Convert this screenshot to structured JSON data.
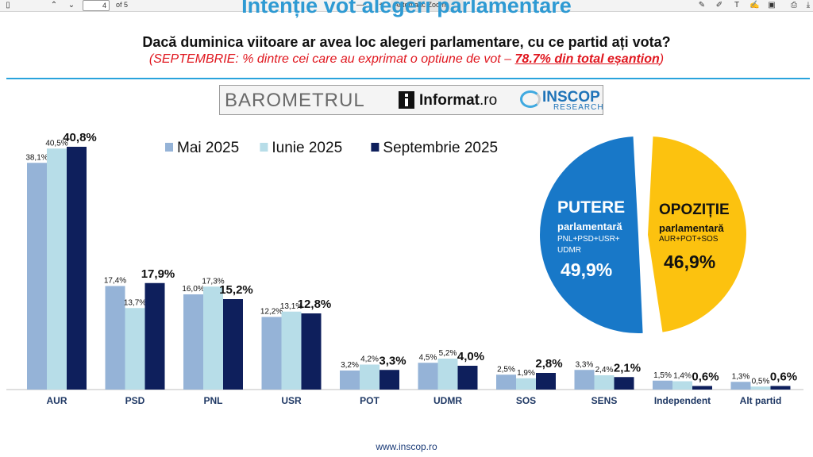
{
  "toolbar": {
    "page_current": "4",
    "page_total": "of 5",
    "zoom": "Automatic Zoom",
    "minus": "—",
    "plus": "+"
  },
  "header": {
    "title": "Intenție vot alegeri parlamentare",
    "question": "Dacă duminica viitoare ar avea loc alegeri parlamentare, cu ce partid ați vota?",
    "note_prefix": "(SEPTEMBRIE: % dintre cei care au exprimat o optiune de vot – ",
    "note_highlight": "78.7% din total eșantion",
    "note_suffix": ")"
  },
  "logos": {
    "barometrul": "BAROMETRUL",
    "informat": "Informat",
    "informat_ro": ".ro",
    "inscop": "INSCOP",
    "research": "RESEARCH"
  },
  "chart_data": {
    "type": "bar",
    "categories": [
      "AUR",
      "PSD",
      "PNL",
      "USR",
      "POT",
      "UDMR",
      "SOS",
      "SENS",
      "Independent",
      "Alt partid"
    ],
    "series": [
      {
        "name": "Mai 2025",
        "color": "#95b3d7",
        "values": [
          38.1,
          17.4,
          16.0,
          12.2,
          3.2,
          4.5,
          2.5,
          3.3,
          1.5,
          1.3
        ],
        "labels": [
          "38,1%",
          "17,4%",
          "16,0%",
          "12,2%",
          "3,2%",
          "4,5%",
          "2,5%",
          "3,3%",
          "1,5%",
          "1,3%"
        ]
      },
      {
        "name": "Iunie 2025",
        "color": "#b7dde8",
        "values": [
          40.5,
          13.7,
          17.3,
          13.1,
          4.2,
          5.2,
          1.9,
          2.4,
          1.4,
          0.5
        ],
        "labels": [
          "40,5%",
          "13,7%",
          "17,3%",
          "13,1%",
          "4,2%",
          "5,2%",
          "1,9%",
          "2,4%",
          "1,4%",
          "0,5%"
        ]
      },
      {
        "name": "Septembrie 2025",
        "color": "#0e1f5c",
        "values": [
          40.8,
          17.9,
          15.2,
          12.8,
          3.3,
          4.0,
          2.8,
          2.1,
          0.6,
          0.6
        ],
        "labels": [
          "40,8%",
          "17,9%",
          "15,2%",
          "12,8%",
          "3,3%",
          "4,0%",
          "2,8%",
          "2,1%",
          "0,6%",
          "0,6%"
        ]
      }
    ],
    "legend": "top-center",
    "pie": {
      "type": "pie",
      "slices": [
        {
          "title": "PUTERE",
          "subtitle": "parlamentară",
          "detail": "PNL+PSD+USR+ UDMR",
          "value": 49.9,
          "label": "49,9%",
          "color": "#1878c8"
        },
        {
          "title": "OPOZIȚIE",
          "subtitle": "parlamentară",
          "detail": "AUR+POT+SOS",
          "value": 46.9,
          "label": "46,9%",
          "color": "#fcc20f"
        }
      ]
    }
  },
  "footer": {
    "url": "www.inscop.ro"
  }
}
